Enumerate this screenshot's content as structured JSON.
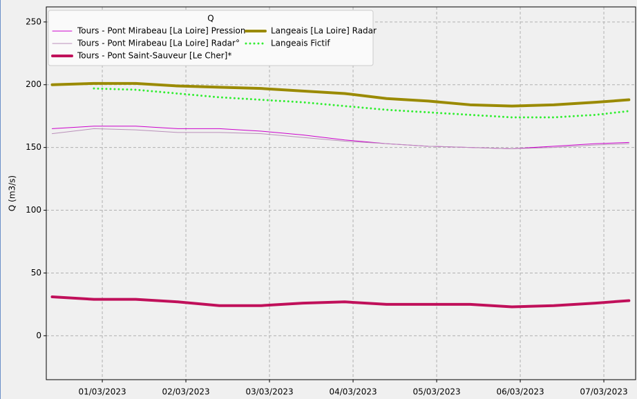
{
  "chart_data": {
    "type": "line",
    "ylabel": "Q (m3/s)",
    "legend_title": "Q",
    "legend": "upper left",
    "grid": true,
    "x": [
      0.4,
      0.9,
      1.4,
      1.9,
      2.4,
      2.9,
      3.4,
      3.9,
      4.4,
      4.9,
      5.4,
      5.9,
      6.4,
      6.9,
      7.3
    ],
    "xlim": [
      0.33,
      7.38
    ],
    "xticks": [
      {
        "value": 1,
        "label": "01/03/2023"
      },
      {
        "value": 2,
        "label": "02/03/2023"
      },
      {
        "value": 3,
        "label": "03/03/2023"
      },
      {
        "value": 4,
        "label": "04/03/2023"
      },
      {
        "value": 5,
        "label": "05/03/2023"
      },
      {
        "value": 6,
        "label": "06/03/2023"
      },
      {
        "value": 7,
        "label": "07/03/2023"
      }
    ],
    "ylim": [
      -35,
      262
    ],
    "yticks": [
      0,
      50,
      100,
      150,
      200,
      250
    ],
    "series": [
      {
        "name": "Tours - Pont Mirabeau [La Loire] Pression",
        "color": "#cc00cc",
        "style": "solid",
        "values": [
          165,
          167,
          167,
          165,
          165,
          163,
          160,
          156,
          153,
          151,
          150,
          149,
          151,
          153,
          154
        ]
      },
      {
        "name": "Tours - Pont Mirabeau [La Loire] Radar°",
        "color": "#b98fb9",
        "style": "solid",
        "values": [
          161,
          165,
          164,
          162,
          162,
          161,
          158,
          155,
          153,
          151,
          150,
          149,
          150,
          152,
          153
        ]
      },
      {
        "name": "Tours - Pont Saint-Sauveur [Le Cher]*",
        "color": "#c0105a",
        "style": "thick",
        "values": [
          31,
          29,
          29,
          27,
          24,
          24,
          26,
          27,
          25,
          25,
          25,
          23,
          24,
          26,
          28
        ]
      },
      {
        "name": "Langeais [La Loire] Radar",
        "color": "#9a8a00",
        "style": "thick",
        "values": [
          200,
          201,
          201,
          199,
          198,
          197,
          195,
          193,
          189,
          187,
          184,
          183,
          184,
          186,
          188
        ]
      },
      {
        "name": "Langeais Fictif",
        "color": "#33ee33",
        "style": "dotted",
        "values": [
          null,
          197,
          196,
          193,
          190,
          188,
          186,
          183,
          180,
          178,
          176,
          174,
          174,
          176,
          179
        ]
      }
    ]
  }
}
